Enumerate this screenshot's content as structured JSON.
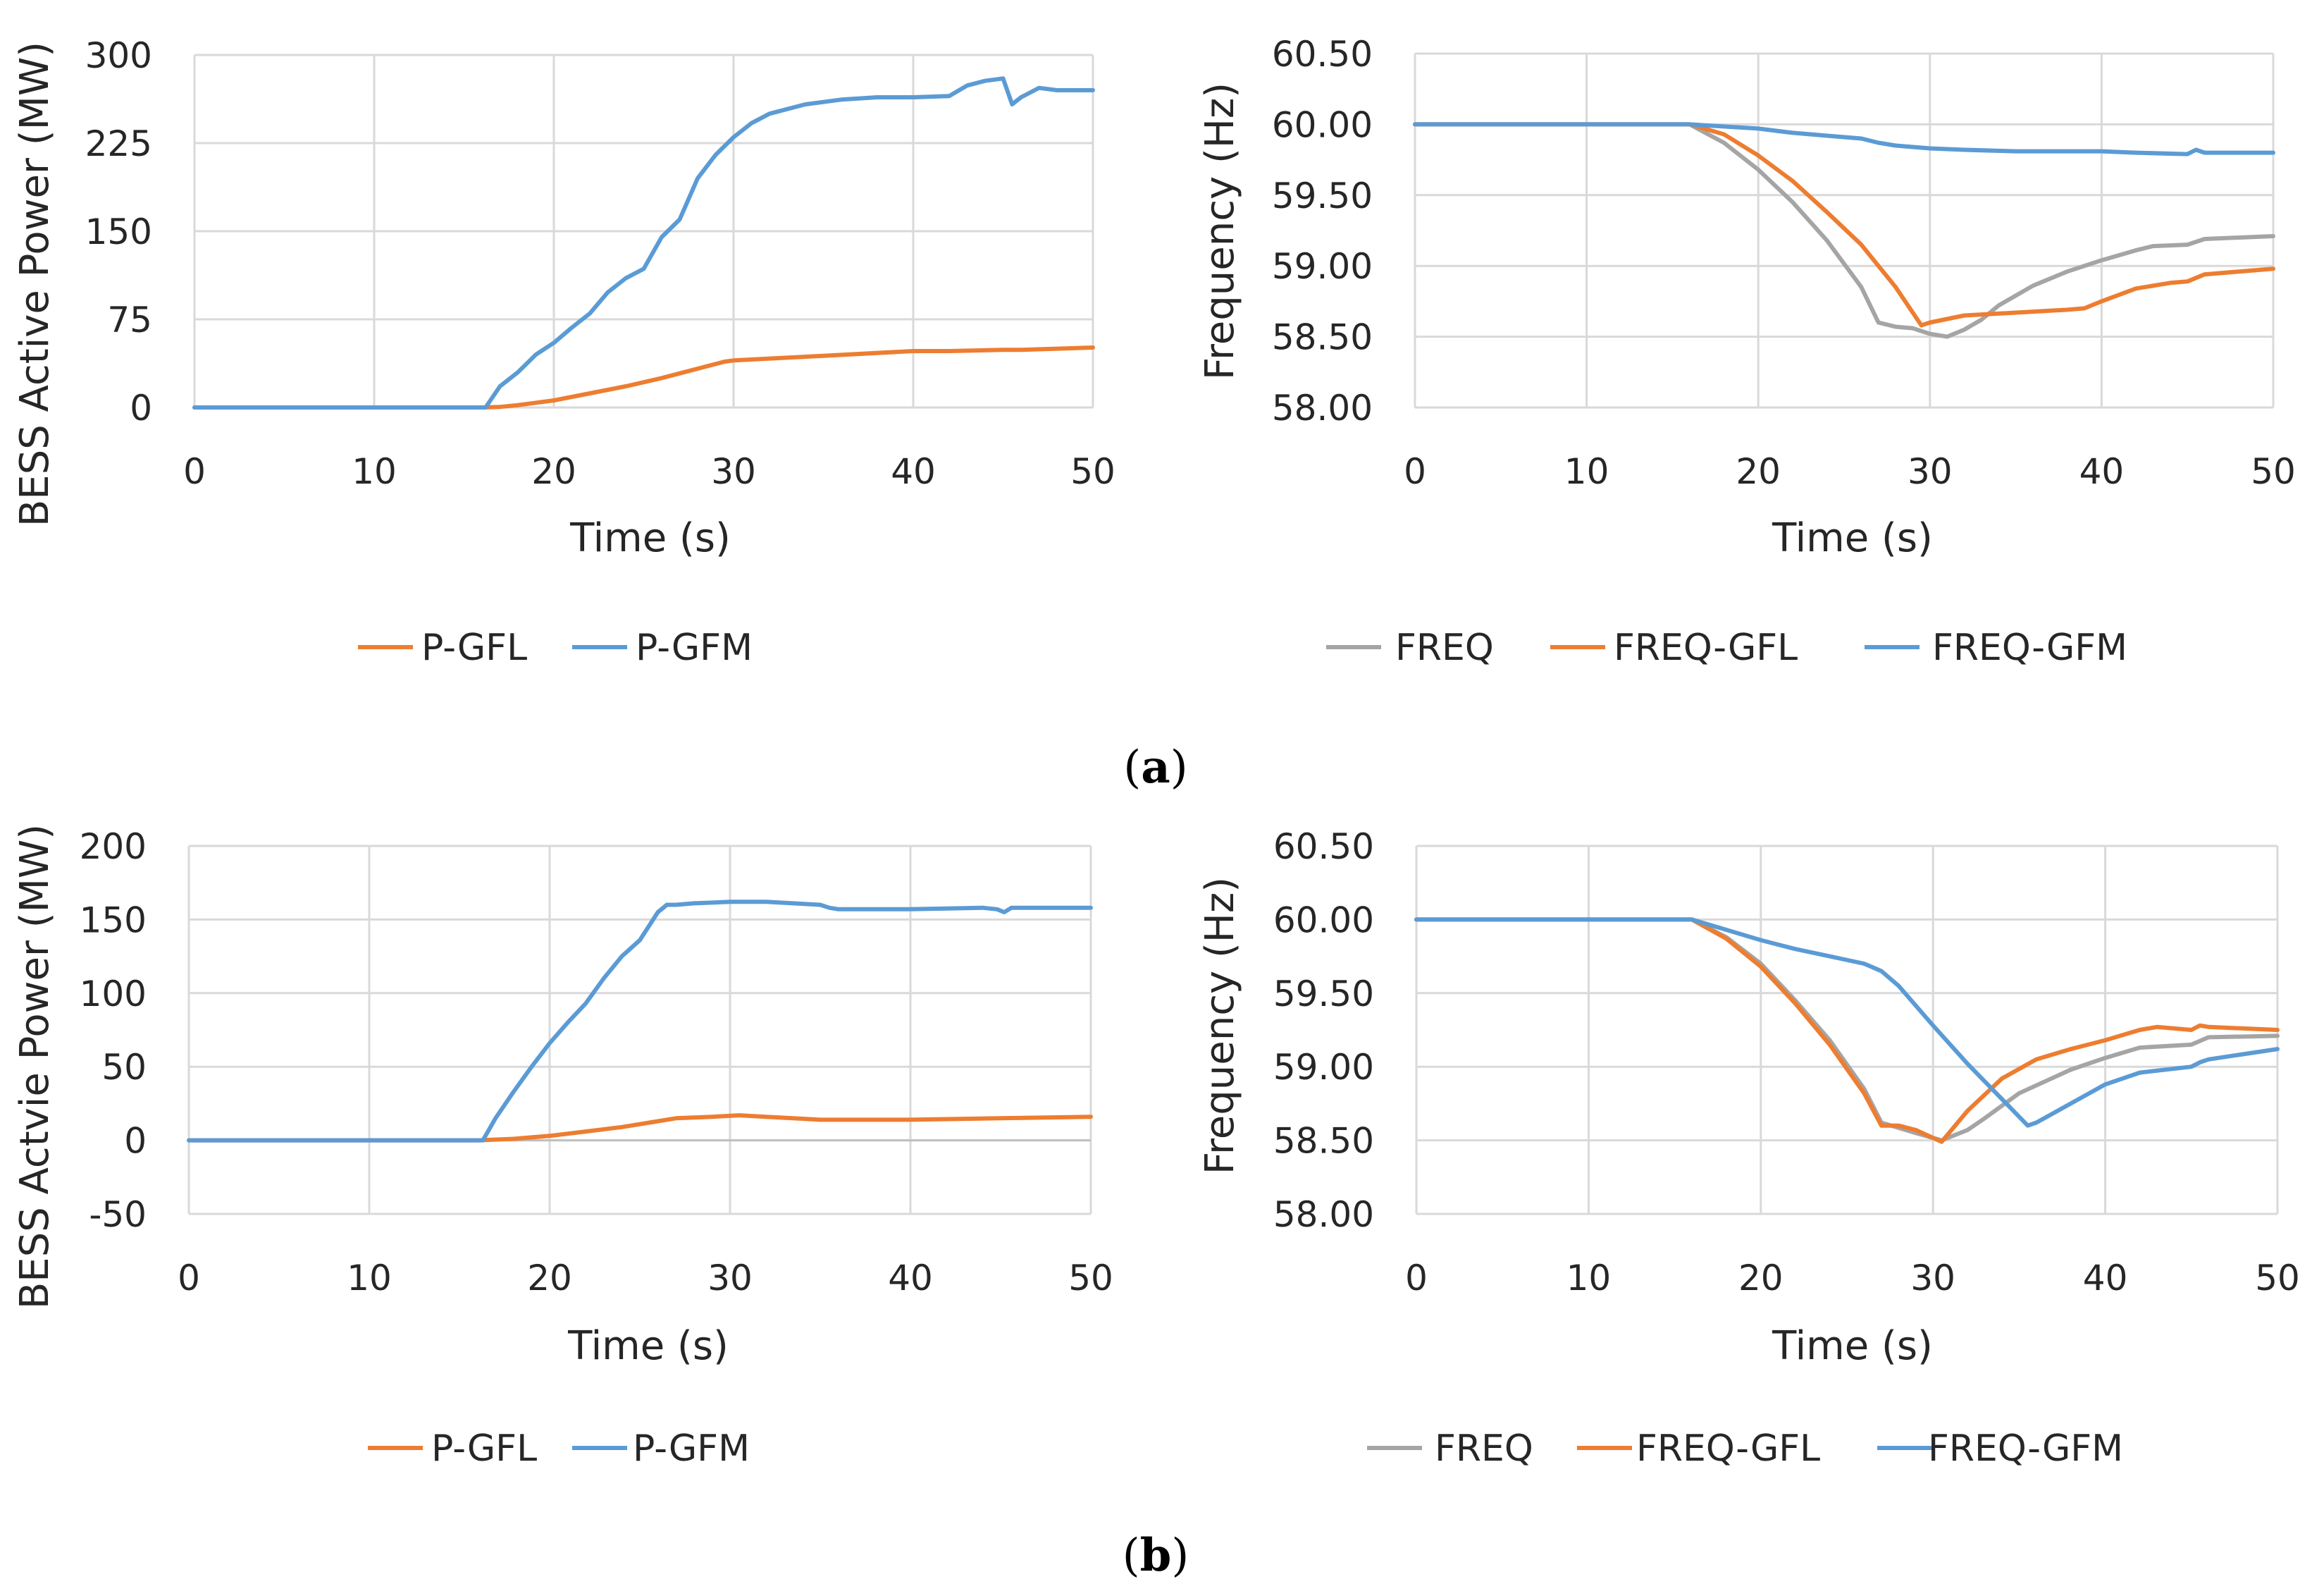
{
  "colors": {
    "orange": "#ED7D31",
    "blue": "#5B9BD5",
    "gray": "#A5A5A5",
    "grid": "#D9D9D9",
    "axis": "#BFBFBF"
  },
  "panels": [
    {
      "open": "(",
      "letter": "a",
      "close": ")"
    },
    {
      "open": "(",
      "letter": "b",
      "close": ")"
    }
  ],
  "chart_data": [
    {
      "type": "line",
      "id": "a-power",
      "xlabel": "Time (s)",
      "ylabel": "BESS Active Power (MW)",
      "xlim": [
        0,
        50
      ],
      "ylim": [
        0,
        300
      ],
      "xticks": [
        0,
        10,
        20,
        30,
        40,
        50
      ],
      "yticks": [
        0,
        75,
        150,
        225,
        300
      ],
      "tick_decimals": 0,
      "grid": true,
      "legend_position": "bottom",
      "series": [
        {
          "name": "P-GFL",
          "color": "#ED7D31",
          "x": [
            0,
            16,
            17,
            18,
            20,
            22,
            24,
            26,
            27.5,
            29.5,
            30,
            35,
            40,
            42,
            45,
            46,
            50
          ],
          "y": [
            0,
            0,
            0.5,
            2,
            6,
            12,
            18,
            25,
            31,
            39,
            40,
            44,
            48,
            48,
            49,
            49,
            51
          ]
        },
        {
          "name": "P-GFM",
          "color": "#5B9BD5",
          "x": [
            0,
            16.2,
            17,
            18,
            19,
            20,
            21,
            22,
            23,
            24,
            25,
            26,
            27,
            28,
            29,
            30,
            31,
            32,
            34,
            36,
            38,
            40,
            42,
            43,
            44,
            45,
            45.5,
            46,
            47,
            48,
            50
          ],
          "y": [
            0,
            0,
            18,
            30,
            45,
            55,
            68,
            80,
            98,
            110,
            118,
            145,
            160,
            195,
            215,
            230,
            242,
            250,
            258,
            262,
            264,
            264,
            265,
            274,
            278,
            280,
            258,
            264,
            272,
            270,
            270
          ]
        }
      ]
    },
    {
      "type": "line",
      "id": "a-freq",
      "xlabel": "Time (s)",
      "ylabel": "Frequency (Hz)",
      "xlim": [
        0,
        50
      ],
      "ylim": [
        58.0,
        60.5
      ],
      "xticks": [
        0,
        10,
        20,
        30,
        40,
        50
      ],
      "yticks": [
        58.0,
        58.5,
        59.0,
        59.5,
        60.0,
        60.5
      ],
      "tick_decimals": 2,
      "grid": true,
      "legend_position": "bottom",
      "series": [
        {
          "name": "FREQ",
          "color": "#A5A5A5",
          "x": [
            0,
            16,
            18,
            20,
            22,
            24,
            26,
            27,
            28,
            29,
            30,
            31,
            32,
            33,
            34,
            36,
            38,
            40,
            42,
            43,
            45,
            46,
            50
          ],
          "y": [
            60.0,
            60.0,
            59.87,
            59.68,
            59.45,
            59.18,
            58.85,
            58.6,
            58.57,
            58.56,
            58.52,
            58.5,
            58.55,
            58.62,
            58.72,
            58.86,
            58.96,
            59.04,
            59.11,
            59.14,
            59.15,
            59.19,
            59.21
          ]
        },
        {
          "name": "FREQ-GFL",
          "color": "#ED7D31",
          "x": [
            0,
            16,
            18,
            20,
            22,
            24,
            26,
            28,
            29.5,
            30,
            32,
            35,
            38,
            39,
            40,
            42,
            44,
            45,
            46,
            48,
            50
          ],
          "y": [
            60.0,
            60.0,
            59.93,
            59.78,
            59.6,
            59.38,
            59.15,
            58.85,
            58.58,
            58.6,
            58.65,
            58.67,
            58.69,
            58.7,
            58.75,
            58.84,
            58.88,
            58.89,
            58.94,
            58.96,
            58.98
          ]
        },
        {
          "name": "FREQ-GFM",
          "color": "#5B9BD5",
          "x": [
            0,
            16,
            20,
            22,
            24,
            26,
            27,
            28,
            30,
            32,
            35,
            40,
            42,
            45,
            45.5,
            46,
            50
          ],
          "y": [
            60.0,
            60.0,
            59.97,
            59.94,
            59.92,
            59.9,
            59.87,
            59.85,
            59.83,
            59.82,
            59.81,
            59.81,
            59.8,
            59.79,
            59.82,
            59.8,
            59.8
          ]
        }
      ]
    },
    {
      "type": "line",
      "id": "b-power",
      "xlabel": "Time (s)",
      "ylabel": "BESS Actvie Power (MW)",
      "xlim": [
        0,
        50
      ],
      "ylim": [
        -50,
        200
      ],
      "xticks": [
        0,
        10,
        20,
        30,
        40,
        50
      ],
      "yticks": [
        -50,
        0,
        50,
        100,
        150,
        200
      ],
      "tick_decimals": 0,
      "grid": true,
      "legend_position": "bottom",
      "series": [
        {
          "name": "P-GFL",
          "color": "#ED7D31",
          "x": [
            0,
            16,
            18,
            20,
            22,
            24,
            26,
            27,
            29,
            30.5,
            32,
            35,
            40,
            45,
            50
          ],
          "y": [
            0,
            0,
            1,
            3,
            6,
            9,
            13,
            15,
            16,
            17,
            16,
            14,
            14,
            15,
            16
          ]
        },
        {
          "name": "P-GFM",
          "color": "#5B9BD5",
          "x": [
            0,
            16.3,
            17,
            18,
            19,
            20,
            21,
            22,
            23,
            24,
            25,
            26,
            26.5,
            27,
            28,
            30,
            32,
            35,
            35.5,
            36,
            40,
            44,
            44.8,
            45.2,
            45.6,
            50
          ],
          "y": [
            0,
            0,
            15,
            33,
            50,
            66,
            80,
            93,
            110,
            125,
            136,
            155,
            160,
            160,
            161,
            162,
            162,
            160,
            158,
            157,
            157,
            158,
            157,
            155,
            158,
            158
          ]
        }
      ]
    },
    {
      "type": "line",
      "id": "b-freq",
      "xlabel": "Time (s)",
      "ylabel": "Frequency (Hz)",
      "xlim": [
        0,
        50
      ],
      "ylim": [
        58.0,
        60.5
      ],
      "xticks": [
        0,
        10,
        20,
        30,
        40,
        50
      ],
      "yticks": [
        58.0,
        58.5,
        59.0,
        59.5,
        60.0,
        60.5
      ],
      "tick_decimals": 2,
      "grid": true,
      "legend_position": "bottom",
      "series": [
        {
          "name": "FREQ",
          "color": "#A5A5A5",
          "x": [
            0,
            16,
            18,
            20,
            22,
            24,
            26,
            27,
            29,
            30.5,
            32,
            33,
            35,
            38,
            40,
            42,
            45,
            46,
            50
          ],
          "y": [
            60.0,
            60.0,
            59.88,
            59.7,
            59.45,
            59.18,
            58.85,
            58.62,
            58.55,
            58.5,
            58.57,
            58.65,
            58.82,
            58.98,
            59.06,
            59.13,
            59.15,
            59.2,
            59.21
          ]
        },
        {
          "name": "FREQ-GFL",
          "color": "#ED7D31",
          "x": [
            0,
            16,
            18,
            20,
            22,
            24,
            26,
            27,
            28,
            29,
            30.5,
            32,
            34,
            36,
            38,
            40,
            42,
            43,
            45,
            45.5,
            46,
            50
          ],
          "y": [
            60.0,
            60.0,
            59.87,
            59.68,
            59.43,
            59.15,
            58.82,
            58.6,
            58.6,
            58.57,
            58.49,
            58.7,
            58.92,
            59.05,
            59.12,
            59.18,
            59.25,
            59.27,
            59.25,
            59.28,
            59.27,
            59.25
          ]
        },
        {
          "name": "FREQ-GFM",
          "color": "#5B9BD5",
          "x": [
            0,
            16,
            18,
            20,
            22,
            24,
            26,
            27,
            28,
            30,
            32,
            34,
            35.5,
            36,
            38,
            40,
            42,
            45,
            45.5,
            46,
            50
          ],
          "y": [
            60.0,
            60.0,
            59.93,
            59.86,
            59.8,
            59.75,
            59.7,
            59.65,
            59.55,
            59.28,
            59.02,
            58.78,
            58.6,
            58.62,
            58.75,
            58.88,
            58.96,
            59.0,
            59.03,
            59.05,
            59.12
          ]
        }
      ]
    }
  ]
}
